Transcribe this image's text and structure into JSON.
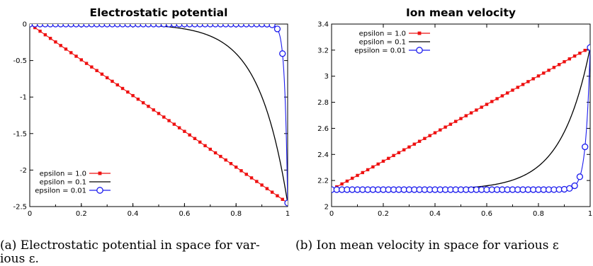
{
  "captions": {
    "a_line1": "(a) Electrostatic potential in space for var-",
    "a_line2": "ious ε.",
    "b_line1": "(b) Ion mean velocity in space for various ε"
  },
  "colors": {
    "eps1": "#ee1111",
    "eps01": "#000000",
    "eps001": "#1c1cee"
  },
  "chart_data": [
    {
      "type": "line",
      "title": "Electrostatic potential",
      "xlabel": "",
      "ylabel": "",
      "xlim": [
        0,
        1
      ],
      "ylim": [
        -2.5,
        0
      ],
      "xticks": [
        0,
        0.2,
        0.4,
        0.6,
        0.8,
        1
      ],
      "xtick_labels": [
        "0",
        "0.2",
        "0.4",
        "0.6",
        "0.8",
        "1"
      ],
      "yticks": [
        0,
        -0.5,
        -1,
        -1.5,
        -2,
        -2.5
      ],
      "ytick_labels": [
        "0",
        "-0.5",
        "-1",
        "-1.5",
        "-2",
        "-2.5"
      ],
      "grid": false,
      "legend_position": "bottom-left",
      "series": [
        {
          "name": "epsilon = 1.0",
          "marker": "filled-square",
          "color": "#ee1111",
          "model": "linear",
          "start": 0,
          "end": -2.45,
          "points": 51
        },
        {
          "name": "epsilon = 0.1",
          "marker": "none",
          "color": "#000000",
          "model": "exponential",
          "start": 0,
          "end": -2.45,
          "rate": 9
        },
        {
          "name": "epsilon = 0.01",
          "marker": "open-circle",
          "color": "#1c1cee",
          "model": "exponential",
          "start": 0,
          "end": -2.45,
          "rate": 90,
          "points": 51
        }
      ]
    },
    {
      "type": "line",
      "title": "Ion mean velocity",
      "xlabel": "",
      "ylabel": "",
      "xlim": [
        0,
        1
      ],
      "ylim": [
        2,
        3.4
      ],
      "xticks": [
        0,
        0.2,
        0.4,
        0.6,
        0.8,
        1
      ],
      "xtick_labels": [
        "0",
        "0.2",
        "0.4",
        "0.6",
        "0.8",
        "1"
      ],
      "yticks": [
        2,
        2.2,
        2.4,
        2.6,
        2.8,
        3,
        3.2,
        3.4
      ],
      "ytick_labels": [
        "2",
        "2.2",
        "2.4",
        "2.6",
        "2.8",
        "3",
        "3.2",
        "3.4"
      ],
      "grid": false,
      "legend_position": "top-left",
      "series": [
        {
          "name": "epsilon = 1.0",
          "marker": "filled-square",
          "color": "#ee1111",
          "model": "linear",
          "start": 2.13,
          "end": 3.22,
          "points": 51
        },
        {
          "name": "epsilon = 0.1",
          "marker": "none",
          "color": "#000000",
          "model": "exponential",
          "start": 2.13,
          "end": 3.22,
          "rate": 9
        },
        {
          "name": "epsilon = 0.01",
          "marker": "open-circle",
          "color": "#1c1cee",
          "model": "exponential",
          "start": 2.13,
          "end": 3.22,
          "rate": 60,
          "points": 51
        }
      ]
    }
  ]
}
